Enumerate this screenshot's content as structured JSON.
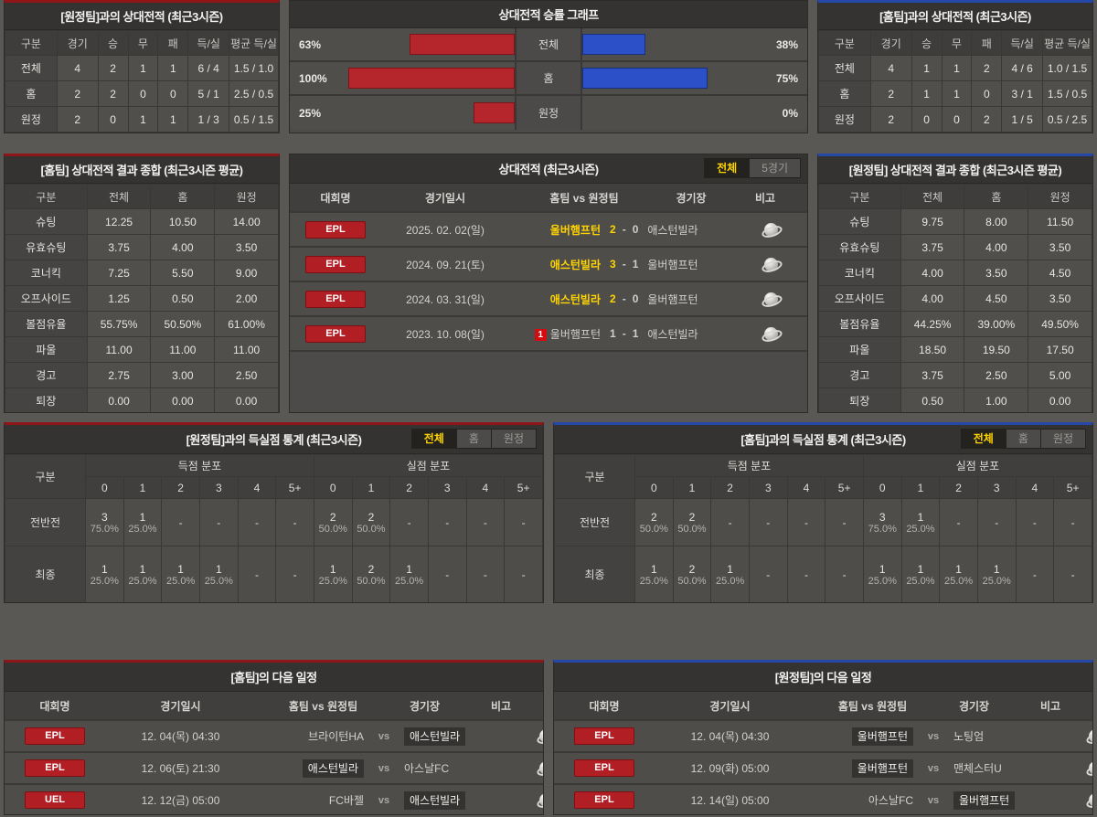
{
  "colors": {
    "accent_red": "#8e1619",
    "accent_blue": "#2447a8",
    "bar_red": "#b4262b",
    "bar_blue": "#2c50c8",
    "league_badge_red": "#b11e23",
    "winner_yellow": "#ffd400"
  },
  "h2h_vs_away": {
    "title": "[원정팀]과의 상대전적 (최근3시즌)",
    "headers": [
      "구분",
      "경기",
      "승",
      "무",
      "패",
      "득/실",
      "평균 득/실"
    ],
    "rows": [
      {
        "label": "전체",
        "values": [
          "4",
          "2",
          "1",
          "1",
          "6 / 4",
          "1.5 / 1.0"
        ]
      },
      {
        "label": "홈",
        "values": [
          "2",
          "2",
          "0",
          "0",
          "5 / 1",
          "2.5 / 0.5"
        ]
      },
      {
        "label": "원정",
        "values": [
          "2",
          "0",
          "1",
          "1",
          "1 / 3",
          "0.5 / 1.5"
        ]
      }
    ]
  },
  "h2h_vs_home": {
    "title": "[홈팀]과의 상대전적 (최근3시즌)",
    "headers": [
      "구분",
      "경기",
      "승",
      "무",
      "패",
      "득/실",
      "평균 득/실"
    ],
    "rows": [
      {
        "label": "전체",
        "values": [
          "4",
          "1",
          "1",
          "2",
          "4 / 6",
          "1.0 / 1.5"
        ]
      },
      {
        "label": "홈",
        "values": [
          "2",
          "1",
          "1",
          "0",
          "3 / 1",
          "1.5 / 0.5"
        ]
      },
      {
        "label": "원정",
        "values": [
          "2",
          "0",
          "0",
          "2",
          "1 / 5",
          "0.5 / 2.5"
        ]
      }
    ]
  },
  "winrate_chart": {
    "title": "상대전적 승률 그래프",
    "chart_data": {
      "type": "bar",
      "categories": [
        "전체",
        "홈",
        "원정"
      ],
      "series": [
        {
          "name": "home-team-winrate",
          "color": "#b4262b",
          "values": [
            63,
            100,
            25
          ]
        },
        {
          "name": "away-team-winrate",
          "color": "#2c50c8",
          "values": [
            38,
            75,
            0
          ]
        }
      ],
      "value_labels": [
        [
          "63%",
          "38%"
        ],
        [
          "100%",
          "75%"
        ],
        [
          "25%",
          "0%"
        ]
      ],
      "xlim": [
        0,
        100
      ],
      "orientation": "horizontal-mirrored"
    }
  },
  "home_summary": {
    "title": "[홈팀] 상대전적 결과 종합 (최근3시즌 평균)",
    "headers": [
      "구분",
      "전체",
      "홈",
      "원정"
    ],
    "rows": [
      {
        "label": "슈팅",
        "values": [
          "12.25",
          "10.50",
          "14.00"
        ]
      },
      {
        "label": "유효슈팅",
        "values": [
          "3.75",
          "4.00",
          "3.50"
        ]
      },
      {
        "label": "코너킥",
        "values": [
          "7.25",
          "5.50",
          "9.00"
        ]
      },
      {
        "label": "오프사이드",
        "values": [
          "1.25",
          "0.50",
          "2.00"
        ]
      },
      {
        "label": "볼점유율",
        "values": [
          "55.75%",
          "50.50%",
          "61.00%"
        ]
      },
      {
        "label": "파울",
        "values": [
          "11.00",
          "11.00",
          "11.00"
        ]
      },
      {
        "label": "경고",
        "values": [
          "2.75",
          "3.00",
          "2.50"
        ]
      },
      {
        "label": "퇴장",
        "values": [
          "0.00",
          "0.00",
          "0.00"
        ]
      }
    ]
  },
  "away_summary": {
    "title": "[원정팀] 상대전적 결과 종합 (최근3시즌 평균)",
    "headers": [
      "구분",
      "전체",
      "홈",
      "원정"
    ],
    "rows": [
      {
        "label": "슈팅",
        "values": [
          "9.75",
          "8.00",
          "11.50"
        ]
      },
      {
        "label": "유효슈팅",
        "values": [
          "3.75",
          "4.00",
          "3.50"
        ]
      },
      {
        "label": "코너킥",
        "values": [
          "4.00",
          "3.50",
          "4.50"
        ]
      },
      {
        "label": "오프사이드",
        "values": [
          "4.00",
          "4.50",
          "3.50"
        ]
      },
      {
        "label": "볼점유율",
        "values": [
          "44.25%",
          "39.00%",
          "49.50%"
        ]
      },
      {
        "label": "파울",
        "values": [
          "18.50",
          "19.50",
          "17.50"
        ]
      },
      {
        "label": "경고",
        "values": [
          "3.75",
          "2.50",
          "5.00"
        ]
      },
      {
        "label": "퇴장",
        "values": [
          "0.50",
          "1.00",
          "0.00"
        ]
      }
    ]
  },
  "h2h_matches": {
    "title": "상대전적 (최근3시즌)",
    "tabs": [
      {
        "label": "전체",
        "active": true
      },
      {
        "label": "5경기",
        "active": false
      }
    ],
    "headers": {
      "league": "대회명",
      "date": "경기일시",
      "match": "홈팀 vs 원정팀",
      "stadium": "경기장",
      "note": "비고"
    },
    "score_separator": "-",
    "button_label": "결과 〉",
    "rows": [
      {
        "league": "EPL",
        "date": "2025. 02. 02(일)",
        "home": "울버햄프턴",
        "home_win": true,
        "home_score": "2",
        "away_score": "0",
        "away": "애스턴빌라",
        "away_win": false
      },
      {
        "league": "EPL",
        "date": "2024. 09. 21(토)",
        "home": "애스턴빌라",
        "home_win": true,
        "home_score": "3",
        "away_score": "1",
        "away": "울버햄프턴",
        "away_win": false
      },
      {
        "league": "EPL",
        "date": "2024. 03. 31(일)",
        "home": "애스턴빌라",
        "home_win": true,
        "home_score": "2",
        "away_score": "0",
        "away": "울버햄프턴",
        "away_win": false
      },
      {
        "league": "EPL",
        "date": "2023. 10. 08(일)",
        "home": "울버햄프턴",
        "home_badge": "1",
        "home_win": false,
        "home_score": "1",
        "away_score": "1",
        "away": "애스턴빌라",
        "away_win": false
      }
    ]
  },
  "goal_stats_vs_away": {
    "title": "[원정팀]과의 득실점 통계 (최근3시즌)",
    "tabs": [
      {
        "label": "전체",
        "active": true
      },
      {
        "label": "홈",
        "active": false
      },
      {
        "label": "원정",
        "active": false
      }
    ],
    "corner_label": "구분",
    "groups": [
      "득점 분포",
      "실점 분포"
    ],
    "cols": [
      "0",
      "1",
      "2",
      "3",
      "4",
      "5+"
    ],
    "empty_mark": "-",
    "rows": [
      {
        "label": "전반전",
        "scored": [
          {
            "count": "3",
            "pct": "75.0%"
          },
          {
            "count": "1",
            "pct": "25.0%"
          },
          null,
          null,
          null,
          null
        ],
        "conceded": [
          {
            "count": "2",
            "pct": "50.0%"
          },
          {
            "count": "2",
            "pct": "50.0%"
          },
          null,
          null,
          null,
          null
        ]
      },
      {
        "label": "최종",
        "scored": [
          {
            "count": "1",
            "pct": "25.0%"
          },
          {
            "count": "1",
            "pct": "25.0%"
          },
          {
            "count": "1",
            "pct": "25.0%"
          },
          {
            "count": "1",
            "pct": "25.0%"
          },
          null,
          null
        ],
        "conceded": [
          {
            "count": "1",
            "pct": "25.0%"
          },
          {
            "count": "2",
            "pct": "50.0%"
          },
          {
            "count": "1",
            "pct": "25.0%"
          },
          null,
          null,
          null
        ]
      }
    ]
  },
  "goal_stats_vs_home": {
    "title": "[홈팀]과의 득실점 통계 (최근3시즌)",
    "tabs": [
      {
        "label": "전체",
        "active": true
      },
      {
        "label": "홈",
        "active": false
      },
      {
        "label": "원정",
        "active": false
      }
    ],
    "corner_label": "구분",
    "groups": [
      "득점 분포",
      "실점 분포"
    ],
    "cols": [
      "0",
      "1",
      "2",
      "3",
      "4",
      "5+"
    ],
    "empty_mark": "-",
    "rows": [
      {
        "label": "전반전",
        "scored": [
          {
            "count": "2",
            "pct": "50.0%"
          },
          {
            "count": "2",
            "pct": "50.0%"
          },
          null,
          null,
          null,
          null
        ],
        "conceded": [
          {
            "count": "3",
            "pct": "75.0%"
          },
          {
            "count": "1",
            "pct": "25.0%"
          },
          null,
          null,
          null,
          null
        ]
      },
      {
        "label": "최종",
        "scored": [
          {
            "count": "1",
            "pct": "25.0%"
          },
          {
            "count": "2",
            "pct": "50.0%"
          },
          {
            "count": "1",
            "pct": "25.0%"
          },
          null,
          null,
          null
        ],
        "conceded": [
          {
            "count": "1",
            "pct": "25.0%"
          },
          {
            "count": "1",
            "pct": "25.0%"
          },
          {
            "count": "1",
            "pct": "25.0%"
          },
          {
            "count": "1",
            "pct": "25.0%"
          },
          null,
          null
        ]
      }
    ]
  },
  "home_schedule": {
    "title": "[홈팀]의 다음 일정",
    "headers": {
      "league": "대회명",
      "date": "경기일시",
      "match": "홈팀 vs 원정팀",
      "stadium": "경기장",
      "note": "비고"
    },
    "vs_label": "vs",
    "button_label": "비교 〉",
    "rows": [
      {
        "league": "EPL",
        "date": "12. 04(목) 04:30",
        "home": "브라이턴HA",
        "away": "애스턴빌라",
        "highlight": "away"
      },
      {
        "league": "EPL",
        "date": "12. 06(토) 21:30",
        "home": "애스턴빌라",
        "away": "아스날FC",
        "highlight": "home"
      },
      {
        "league": "UEL",
        "date": "12. 12(금) 05:00",
        "home": "FC바젤",
        "away": "애스턴빌라",
        "highlight": "away"
      }
    ]
  },
  "away_schedule": {
    "title": "[원정팀]의 다음 일정",
    "headers": {
      "league": "대회명",
      "date": "경기일시",
      "match": "홈팀 vs 원정팀",
      "stadium": "경기장",
      "note": "비고"
    },
    "vs_label": "vs",
    "button_label": "비교 〉",
    "rows": [
      {
        "league": "EPL",
        "date": "12. 04(목) 04:30",
        "home": "울버햄프턴",
        "away": "노팅엄",
        "highlight": "home"
      },
      {
        "league": "EPL",
        "date": "12. 09(화) 05:00",
        "home": "울버햄프턴",
        "away": "맨체스터U",
        "highlight": "home"
      },
      {
        "league": "EPL",
        "date": "12. 14(일) 05:00",
        "home": "아스날FC",
        "away": "울버햄프턴",
        "highlight": "away"
      }
    ]
  }
}
